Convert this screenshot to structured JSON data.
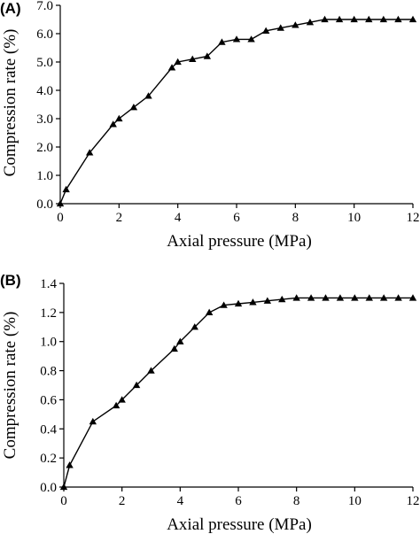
{
  "chart_data": [
    {
      "type": "line",
      "panel_label": "(A)",
      "xlabel": "Axial pressure (MPa)",
      "ylabel": "Compression rate (%)",
      "xlim": [
        0,
        12
      ],
      "ylim": [
        0,
        7.0
      ],
      "xticks": [
        0,
        2,
        4,
        6,
        8,
        10,
        12
      ],
      "yticks": [
        "0.0",
        "1.0",
        "2.0",
        "3.0",
        "4.0",
        "5.0",
        "6.0",
        "7.0"
      ],
      "marker": "triangle",
      "grid": false,
      "series": [
        {
          "x": [
            0,
            0.2,
            1,
            1.8,
            2,
            2.5,
            3,
            3.8,
            4,
            4.5,
            5,
            5.5,
            6,
            6.5,
            7,
            7.5,
            8,
            8.5,
            9,
            9.5,
            10,
            10.5,
            11,
            11.5,
            12
          ],
          "y": [
            0,
            0.5,
            1.8,
            2.8,
            3.0,
            3.4,
            3.8,
            4.8,
            5.0,
            5.1,
            5.2,
            5.7,
            5.8,
            5.8,
            6.1,
            6.2,
            6.3,
            6.4,
            6.5,
            6.5,
            6.5,
            6.5,
            6.5,
            6.5,
            6.5
          ]
        }
      ]
    },
    {
      "type": "line",
      "panel_label": "(B)",
      "xlabel": "Axial pressure (MPa)",
      "ylabel": "Compression rate (%)",
      "xlim": [
        0,
        12
      ],
      "ylim": [
        0,
        1.4
      ],
      "xticks": [
        0,
        2,
        4,
        6,
        8,
        10,
        12
      ],
      "yticks": [
        "0.0",
        "0.2",
        "0.4",
        "0.6",
        "0.8",
        "1.0",
        "1.2",
        "1.4"
      ],
      "marker": "triangle",
      "grid": false,
      "series": [
        {
          "x": [
            0,
            0.2,
            1,
            1.8,
            2,
            2.5,
            3,
            3.8,
            4,
            4.5,
            5,
            5.5,
            6,
            6.5,
            7,
            7.5,
            8,
            8.5,
            9,
            9.5,
            10,
            10.5,
            11,
            11.5,
            12
          ],
          "y": [
            0,
            0.15,
            0.45,
            0.56,
            0.6,
            0.7,
            0.8,
            0.95,
            1.0,
            1.1,
            1.2,
            1.25,
            1.26,
            1.27,
            1.28,
            1.29,
            1.3,
            1.3,
            1.3,
            1.3,
            1.3,
            1.3,
            1.3,
            1.3,
            1.3
          ]
        }
      ]
    }
  ]
}
